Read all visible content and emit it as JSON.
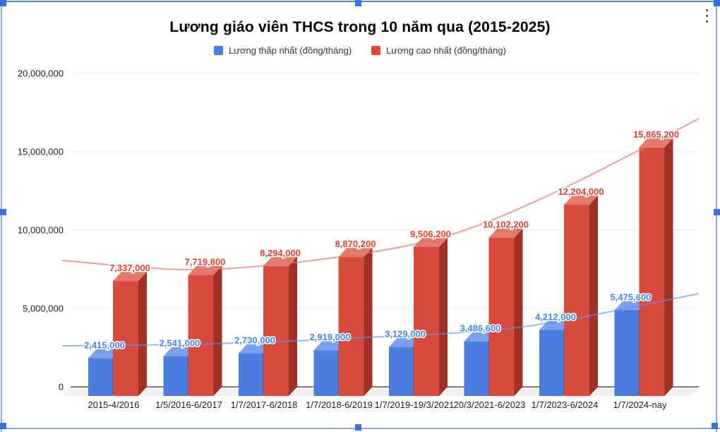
{
  "window": {
    "menu_icon": "kebab-menu",
    "selection": {
      "border_color": "#8fa9e2",
      "handle_color": "#3b6fd9"
    }
  },
  "chart_data": {
    "type": "bar",
    "style": "3d-column",
    "title": "Lương giáo viên THCS trong 10 năm qua (2015-2025)",
    "categories": [
      "2015-4/2016",
      "1/5/2016-6/2017",
      "1/7/2017-6/2018",
      "1/7/2018-6/2019",
      "1/7/2019-19/3/2021",
      "20/3/2021-6/2023",
      "1/7/2023-6/2024",
      "1/7/2024-nay"
    ],
    "series": [
      {
        "name": "Lương thấp nhất (đồng/tháng)",
        "values": [
          2415000,
          2541000,
          2730000,
          2919000,
          3129000,
          3486600,
          4212000,
          5475600
        ],
        "labels": [
          "2,415,000",
          "2,541,000",
          "2,730,000",
          "2,919,000",
          "3,129,000",
          "3,486,600",
          "4,212,000",
          "5,475,600"
        ],
        "color": "#4e7de2",
        "color_top": "#7aa0ef",
        "color_side": "#3a62b8",
        "label_color": "#4285f4",
        "trend_color": "rgba(100,145,235,0.65)"
      },
      {
        "name": "Lương cao nhất (đồng/tháng)",
        "values": [
          7337000,
          7719800,
          8294000,
          8870200,
          9506200,
          10102200,
          12204000,
          15865200
        ],
        "labels": [
          "7,337,000",
          "7,719,800",
          "8,294,000",
          "8,870,200",
          "9,506,200",
          "10,102,200",
          "12,204,000",
          "15,865,200"
        ],
        "color": "#d84b3c",
        "color_top": "#e4796c",
        "color_side": "#9e3227",
        "label_color": "#dd4031",
        "trend_color": "rgba(230,120,110,0.7)"
      }
    ],
    "ylim": [
      0,
      20000000
    ],
    "yticks": [
      {
        "value": 0,
        "label": "0"
      },
      {
        "value": 5000000,
        "label": "5,000,000"
      },
      {
        "value": 10000000,
        "label": "10,000,000"
      },
      {
        "value": 15000000,
        "label": "15,000,000"
      },
      {
        "value": 20000000,
        "label": "20,000,000"
      }
    ],
    "grid": true,
    "legend_position": "top",
    "has_trendlines": true
  }
}
